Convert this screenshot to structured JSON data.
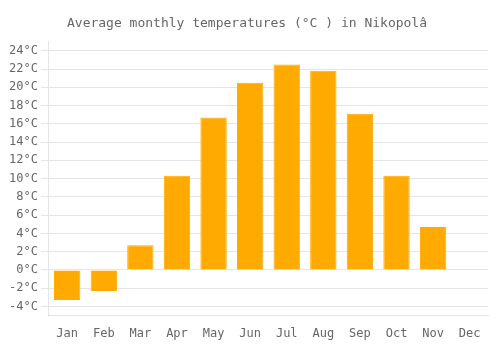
{
  "chart_data": {
    "type": "bar",
    "title": "Average monthly temperatures (°C ) in Nikopolâ",
    "categories": [
      "Jan",
      "Feb",
      "Mar",
      "Apr",
      "May",
      "Jun",
      "Jul",
      "Aug",
      "Sep",
      "Oct",
      "Nov",
      "Dec"
    ],
    "values": [
      -3.3,
      -2.3,
      2.7,
      10.3,
      16.7,
      20.5,
      22.5,
      21.8,
      17.1,
      10.3,
      4.7,
      0.0
    ],
    "color": "#FFAA00",
    "ylim": [
      -5,
      25
    ],
    "yticks": [
      {
        "value": -4,
        "label": "-4°C"
      },
      {
        "value": -2,
        "label": "-2°C"
      },
      {
        "value": 0,
        "label": "0°C"
      },
      {
        "value": 2,
        "label": "2°C"
      },
      {
        "value": 4,
        "label": "4°C"
      },
      {
        "value": 6,
        "label": "6°C"
      },
      {
        "value": 8,
        "label": "8°C"
      },
      {
        "value": 10,
        "label": "10°C"
      },
      {
        "value": 12,
        "label": "12°C"
      },
      {
        "value": 14,
        "label": "14°C"
      },
      {
        "value": 16,
        "label": "16°C"
      },
      {
        "value": 18,
        "label": "18°C"
      },
      {
        "value": 20,
        "label": "20°C"
      },
      {
        "value": 22,
        "label": "22°C"
      },
      {
        "value": 24,
        "label": "24°C"
      }
    ],
    "grid": true
  }
}
